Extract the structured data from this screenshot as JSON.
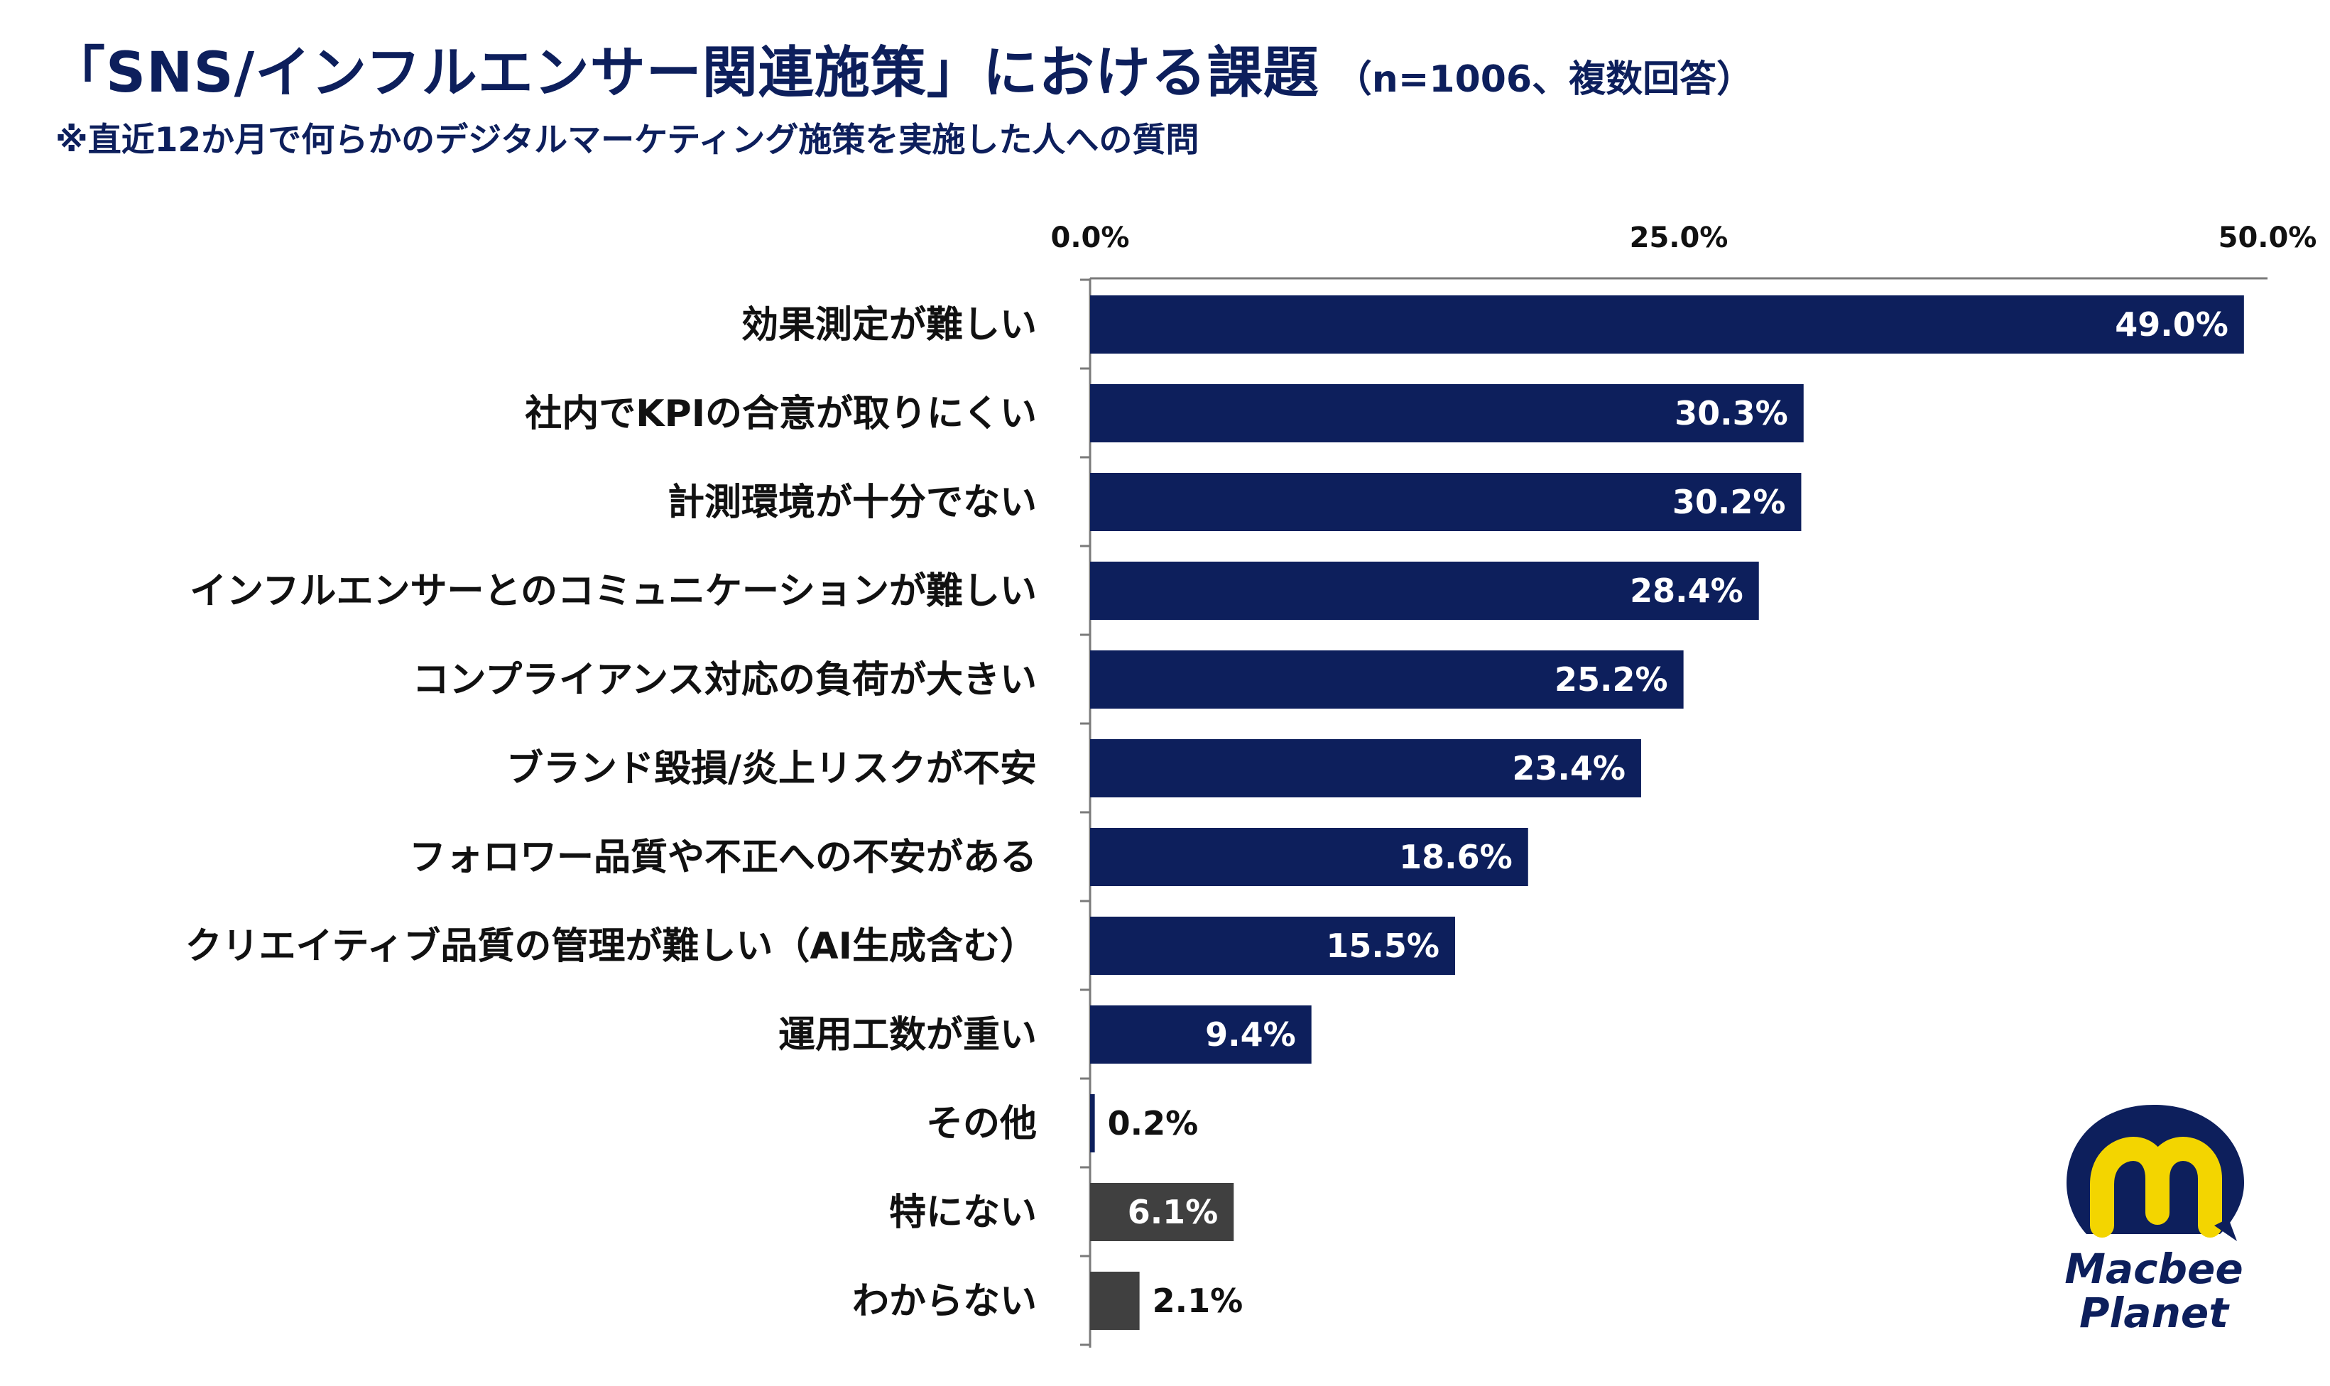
{
  "title": "「SNS/インフルエンサー関連施策」における課題",
  "title_note": "（n=1006、複数回答）",
  "subtitle": "※直近12か月で何らかのデジタルマーケティング施策を実施した人への質問",
  "brand": {
    "name_line1": "Macbee",
    "name_line2": "Planet"
  },
  "colors": {
    "primary_bar": "#0d1f5c",
    "secondary_bar": "#404040",
    "logo_yellow": "#f3d500",
    "text": "#111111"
  },
  "chart_data": {
    "type": "bar",
    "orientation": "horizontal",
    "title": "「SNS/インフルエンサー関連施策」における課題",
    "xlim": [
      0,
      50
    ],
    "ticks": [
      "0.0%",
      "25.0%",
      "50.0%"
    ],
    "tick_values": [
      0,
      25,
      50
    ],
    "axis_position": "top",
    "categories": [
      "効果測定が難しい",
      "社内でKPIの合意が取りにくい",
      "計測環境が十分でない",
      "インフルエンサーとのコミュニケーションが難しい",
      "コンプライアンス対応の負荷が大きい",
      "ブランド毀損/炎上リスクが不安",
      "フォロワー品質や不正への不安がある",
      "クリエイティブ品質の管理が難しい（AI生成含む）",
      "運用工数が重い",
      "その他",
      "特にない",
      "わからない"
    ],
    "values": [
      49.0,
      30.3,
      30.2,
      28.4,
      25.2,
      23.4,
      18.6,
      15.5,
      9.4,
      0.2,
      6.1,
      2.1
    ],
    "value_labels": [
      "49.0%",
      "30.3%",
      "30.2%",
      "28.4%",
      "25.2%",
      "23.4%",
      "18.6%",
      "15.5%",
      "9.4%",
      "0.2%",
      "6.1%",
      "2.1%"
    ],
    "bar_groups": [
      "primary",
      "primary",
      "primary",
      "primary",
      "primary",
      "primary",
      "primary",
      "primary",
      "primary",
      "primary",
      "secondary",
      "secondary"
    ]
  }
}
